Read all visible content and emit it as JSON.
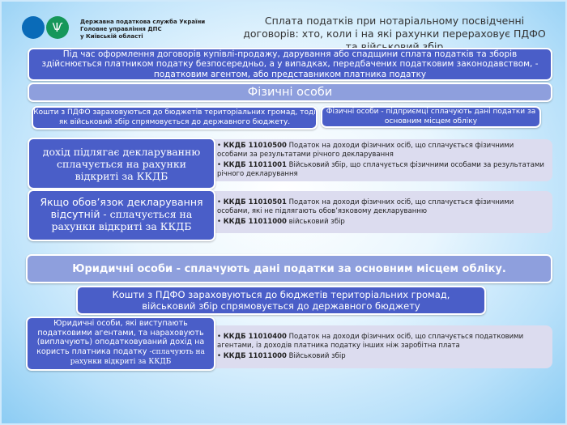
{
  "header": {
    "org_lines": [
      "Державна податкова служба України",
      "Головне управління ДПС",
      "у Київській області"
    ],
    "title": "Сплата податків при нотаріальному посвідченні договорів: хто, коли і на які рахунки перераховує ПДФО та військовий збір",
    "logo_icon": "trident-icon"
  },
  "intro": "Під час оформлення договорів купівлі-продажу, дарування або спадщини сплата податків та зборів здійснюється платником податку безпосередньо, а у випадках, передбачених податковим законодавством, - податковим агентом, або представником платника податку",
  "individuals": {
    "heading": "Фізичні особи",
    "note_left": "Кошти з ПДФО зараховуються до бюджетів територіальних громад, тоді як військовий збір спрямовується до державного бюджету.",
    "note_right": "Фізичні особи - підприємці сплачують дані податки за основним місцем обліку",
    "rows": [
      {
        "label": "дохід підлягає декларуванню сплачується на рахунки відкриті за ККДБ",
        "items": [
          {
            "code": "ККДБ 11010500",
            "text": " Податок на доходи фізичних осіб, що сплачується фізичними особами за результатами річного декларування"
          },
          {
            "code": "ККДБ 11011001",
            "text": " Військовий збір, що сплачується фізичними особами за результатами річного декларування"
          }
        ]
      },
      {
        "label_a": "Якщо обов’язок декларування відсутній",
        "label_b": " - сплачується на рахунки відкриті за ККДБ",
        "items": [
          {
            "code": "ККДБ 11010501",
            "text": " Податок на доходи фізичних осіб, що сплачується фізичними особами, які не підлягають обов’язковому декларуванню"
          },
          {
            "code": "ККДБ 11011000",
            "text": " військовий збір"
          }
        ]
      }
    ]
  },
  "legal": {
    "heading": "Юридичні особи - сплачують дані податки за основним місцем обліку.",
    "note": "Кошти з ПДФО зараховуються до бюджетів територіальних громад, військовий збір спрямовується до державного бюджету",
    "label_a": "Юридичні особи, які виступають податковими агентами, та нараховують (виплачують) оподатковуваний дохід на користь платника податку ",
    "label_b": "-сплачують на рахунки відкриті за ККДБ",
    "items": [
      {
        "code": "ККДБ 11010400",
        "text": " Податок на доходи фізичних осіб, що сплачується податковими агентами, із доходів платника податку інших ніж заробітна плата"
      },
      {
        "code": "ККДБ 11011000",
        "text": " Військовий збір"
      }
    ]
  }
}
